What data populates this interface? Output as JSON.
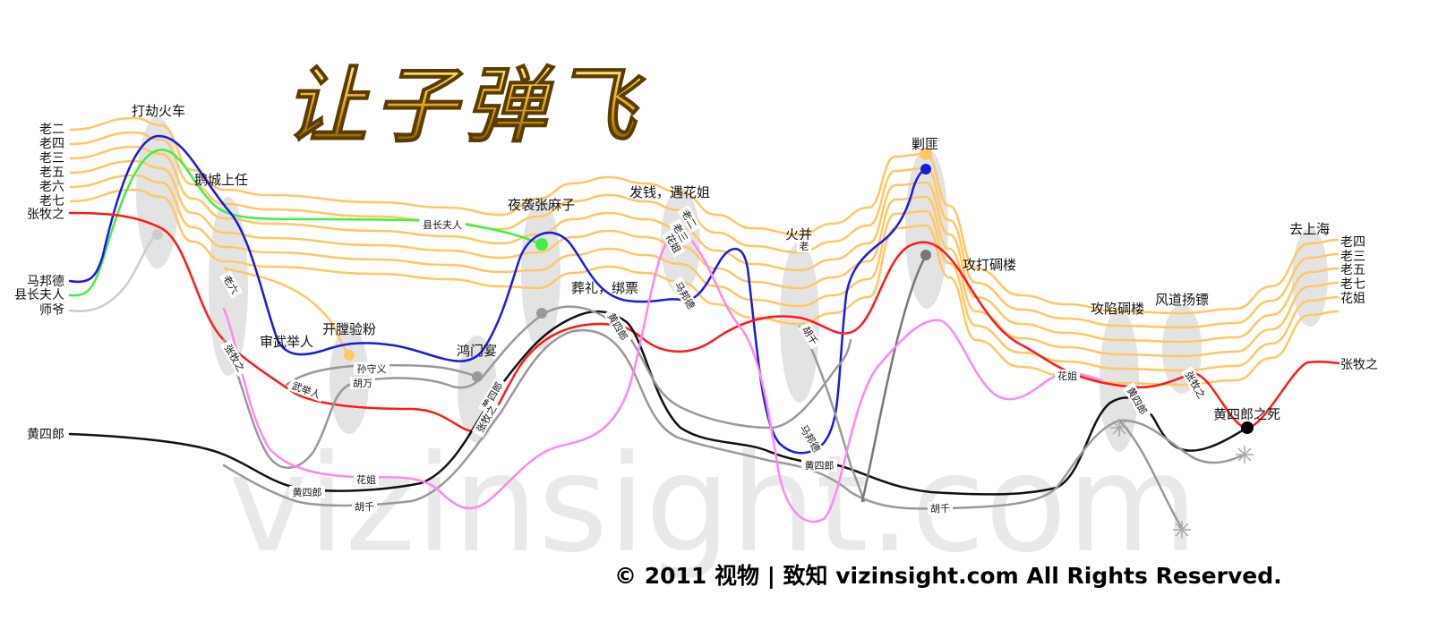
{
  "logo": {
    "text": "让子弹飞"
  },
  "watermark": "vizinsight.com",
  "copyright": "© 2011 视物 | 致知 vizinsight.com All Rights Reserved.",
  "colors": {
    "bandits": "#ffc766",
    "zhang": "#ff1a1a",
    "ma": "#1a1ae6",
    "wife": "#44ee44",
    "shiye": "#cccccc",
    "huang": "#111111",
    "henchmen": "#999999",
    "huajie": "#ff88ee",
    "scene": "#e3e3e3"
  },
  "start_labels": [
    "老二",
    "老四",
    "老三",
    "老五",
    "老六",
    "老七",
    "张牧之",
    "马邦德",
    "县长夫人",
    "师爷",
    "黄四郎"
  ],
  "end_labels": [
    "老四",
    "老三",
    "老五",
    "老七",
    "花姐",
    "张牧之"
  ],
  "events": [
    "打劫火车",
    "鹅城上任",
    "审武举人",
    "开膛验粉",
    "鸿门宴",
    "夜袭张麻子",
    "葬礼，绑票",
    "发钱，遇花姐",
    "火并",
    "剿匪",
    "攻打碉楼",
    "攻陷碉楼",
    "风道扬镖",
    "黄四郎之死",
    "去上海"
  ],
  "ribbon_labels": {
    "lao6": "老六",
    "zhang_a": "张牧之",
    "wuju": "武举人",
    "sun": "孙守义",
    "huwan": "胡万",
    "county": "县长夫人",
    "huangsl_a": "黄四郎",
    "zhang_b": "张牧之",
    "huangsl_b": "黄四郎",
    "huangsl_c": "黄四郎",
    "huaj_a": "花姐",
    "huqian_a": "胡千",
    "ma_a": "马邦德",
    "lao2": "老二",
    "lao3": "老三",
    "huaj_b": "花姐",
    "huqian_b": "胡千",
    "ma_b": "马邦德",
    "lao4": "老",
    "huangsl_d": "黄四郎",
    "huqian_c": "胡千",
    "huaj_c": "花姐",
    "huangsl_e": "黄四郎",
    "zhang_c": "张牧之"
  }
}
